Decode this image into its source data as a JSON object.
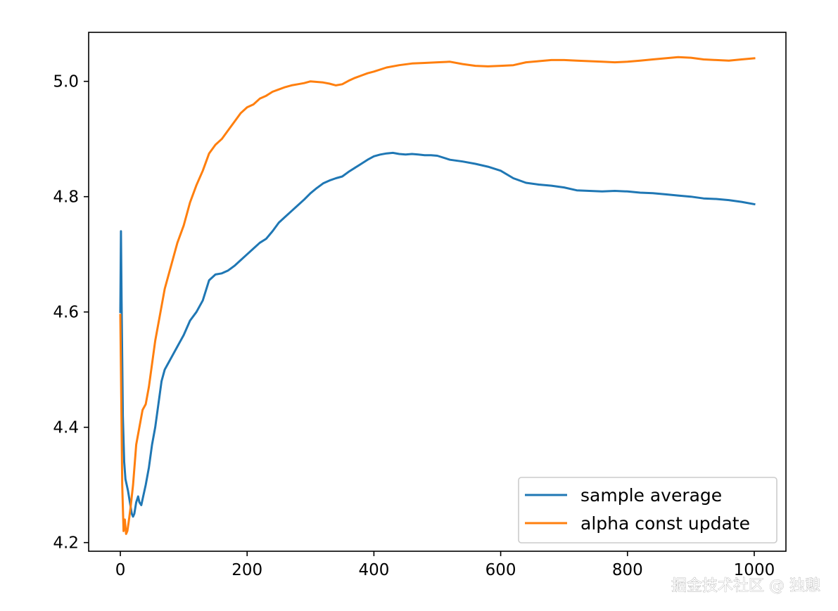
{
  "chart_data": {
    "type": "line",
    "title": "",
    "xlabel": "",
    "ylabel": "",
    "xlim": [
      -50,
      1050
    ],
    "ylim": [
      4.185,
      5.085
    ],
    "x_ticks": [
      0,
      200,
      400,
      600,
      800,
      1000
    ],
    "y_ticks": [
      4.2,
      4.4,
      4.6,
      4.8,
      5.0
    ],
    "x_tick_labels": [
      "0",
      "200",
      "400",
      "600",
      "800",
      "1000"
    ],
    "y_tick_labels": [
      "4.2",
      "4.4",
      "4.6",
      "4.8",
      "5.0"
    ],
    "grid": false,
    "legend_position": "lower-right",
    "series": [
      {
        "name": "sample average",
        "color": "#1f77b4",
        "x": [
          0,
          1,
          2,
          4,
          6,
          8,
          10,
          12,
          15,
          18,
          20,
          22,
          25,
          28,
          30,
          33,
          36,
          40,
          45,
          50,
          55,
          60,
          65,
          70,
          75,
          80,
          90,
          100,
          110,
          120,
          130,
          140,
          150,
          160,
          170,
          180,
          190,
          200,
          210,
          220,
          230,
          240,
          250,
          260,
          270,
          280,
          290,
          300,
          310,
          320,
          330,
          340,
          350,
          360,
          370,
          380,
          390,
          400,
          410,
          420,
          430,
          440,
          450,
          460,
          470,
          480,
          490,
          500,
          520,
          540,
          560,
          580,
          600,
          620,
          640,
          660,
          680,
          700,
          720,
          740,
          760,
          780,
          800,
          820,
          840,
          860,
          880,
          900,
          920,
          940,
          960,
          980,
          1000
        ],
        "y": [
          4.6,
          4.74,
          4.62,
          4.42,
          4.34,
          4.31,
          4.3,
          4.29,
          4.27,
          4.25,
          4.245,
          4.25,
          4.27,
          4.28,
          4.27,
          4.265,
          4.28,
          4.3,
          4.33,
          4.37,
          4.4,
          4.44,
          4.48,
          4.5,
          4.51,
          4.52,
          4.54,
          4.56,
          4.585,
          4.6,
          4.62,
          4.655,
          4.665,
          4.667,
          4.672,
          4.68,
          4.69,
          4.7,
          4.71,
          4.72,
          4.727,
          4.74,
          4.755,
          4.765,
          4.775,
          4.785,
          4.795,
          4.806,
          4.815,
          4.823,
          4.828,
          4.832,
          4.835,
          4.843,
          4.85,
          4.857,
          4.864,
          4.87,
          4.873,
          4.875,
          4.876,
          4.874,
          4.873,
          4.874,
          4.873,
          4.872,
          4.872,
          4.871,
          4.864,
          4.861,
          4.857,
          4.852,
          4.845,
          4.832,
          4.824,
          4.821,
          4.819,
          4.816,
          4.811,
          4.81,
          4.809,
          4.81,
          4.809,
          4.807,
          4.806,
          4.804,
          4.802,
          4.8,
          4.797,
          4.796,
          4.794,
          4.791,
          4.787
        ]
      },
      {
        "name": "alpha const update",
        "color": "#ff7f0e",
        "x": [
          0,
          1,
          3,
          5,
          7,
          9,
          11,
          13,
          16,
          20,
          25,
          30,
          35,
          40,
          45,
          50,
          55,
          60,
          65,
          70,
          80,
          90,
          100,
          110,
          120,
          130,
          140,
          150,
          160,
          170,
          180,
          190,
          200,
          210,
          220,
          230,
          240,
          250,
          260,
          270,
          280,
          290,
          300,
          310,
          320,
          330,
          340,
          350,
          360,
          370,
          380,
          390,
          400,
          420,
          440,
          460,
          480,
          500,
          520,
          540,
          560,
          580,
          600,
          620,
          640,
          660,
          680,
          700,
          720,
          740,
          760,
          780,
          800,
          820,
          840,
          860,
          880,
          900,
          920,
          940,
          960,
          980,
          1000
        ],
        "y": [
          4.595,
          4.5,
          4.3,
          4.22,
          4.24,
          4.215,
          4.22,
          4.235,
          4.26,
          4.3,
          4.37,
          4.4,
          4.43,
          4.44,
          4.47,
          4.51,
          4.55,
          4.58,
          4.61,
          4.64,
          4.68,
          4.72,
          4.75,
          4.79,
          4.82,
          4.845,
          4.875,
          4.89,
          4.9,
          4.915,
          4.93,
          4.945,
          4.955,
          4.96,
          4.97,
          4.975,
          4.982,
          4.986,
          4.99,
          4.993,
          4.995,
          4.997,
          5.0,
          4.999,
          4.998,
          4.996,
          4.993,
          4.995,
          5.001,
          5.006,
          5.01,
          5.014,
          5.017,
          5.024,
          5.028,
          5.031,
          5.032,
          5.033,
          5.034,
          5.03,
          5.027,
          5.026,
          5.027,
          5.028,
          5.033,
          5.035,
          5.037,
          5.037,
          5.036,
          5.035,
          5.034,
          5.033,
          5.034,
          5.036,
          5.038,
          5.04,
          5.042,
          5.041,
          5.038,
          5.037,
          5.036,
          5.038,
          5.04
        ]
      }
    ]
  },
  "watermark": {
    "text": "掘金技术社区 @ 独憩"
  }
}
